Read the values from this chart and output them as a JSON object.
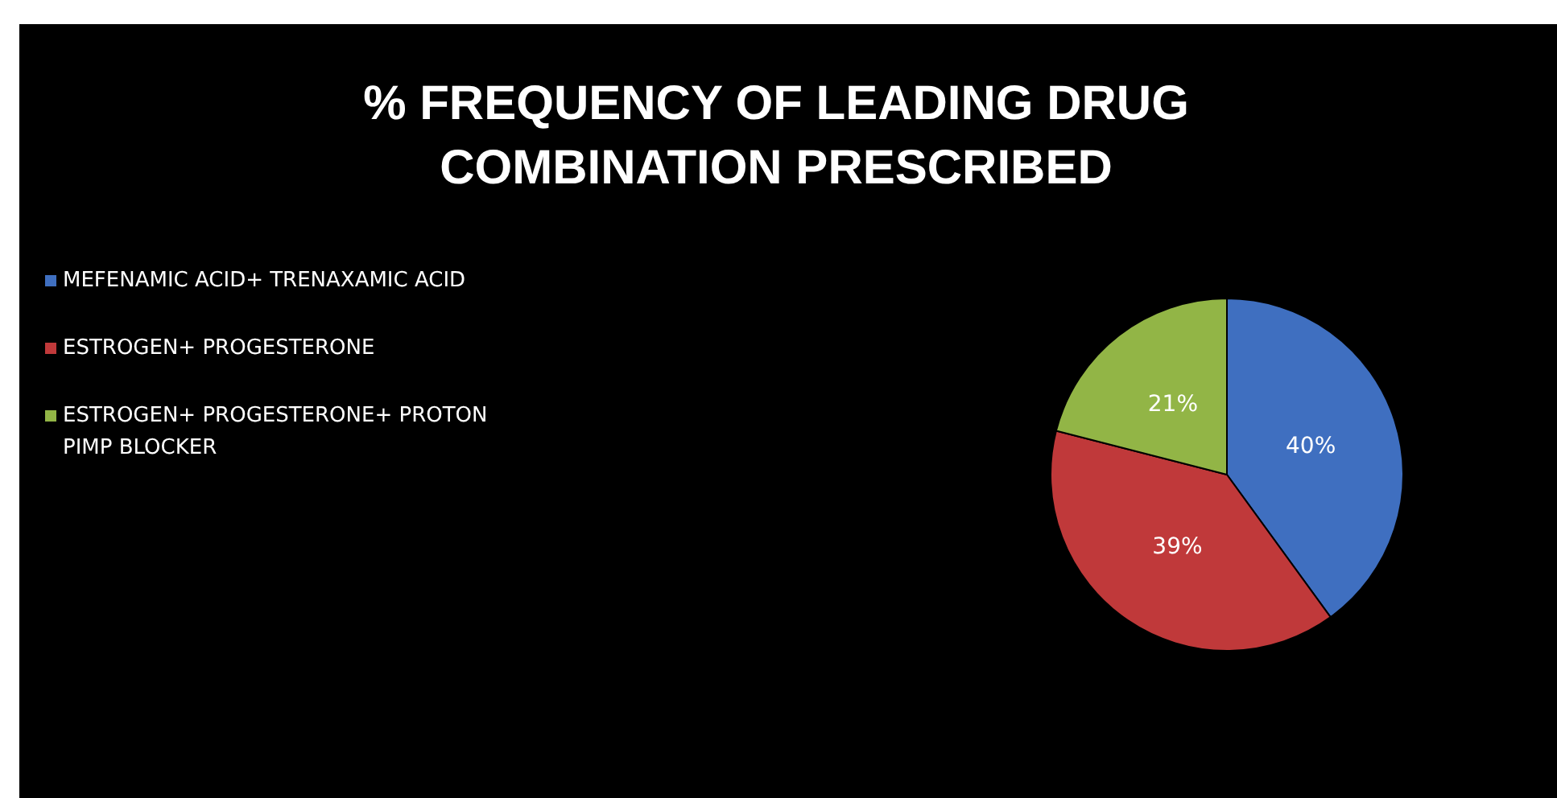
{
  "chart_data": {
    "type": "pie",
    "title": "% FREQUENCY OF LEADING DRUG COMBINATION PRESCRIBED",
    "categories": [
      "MEFENAMIC ACID+ TRENAXAMIC ACID",
      "ESTROGEN+ PROGESTERONE",
      "ESTROGEN+ PROGESTERONE+ PROTON PIMP BLOCKER"
    ],
    "values": [
      40,
      39,
      21
    ],
    "colors": [
      "#3f6fc0",
      "#c0393a",
      "#92b546"
    ],
    "value_labels": [
      "40%",
      "39%",
      "21%"
    ],
    "legend": "top left"
  }
}
